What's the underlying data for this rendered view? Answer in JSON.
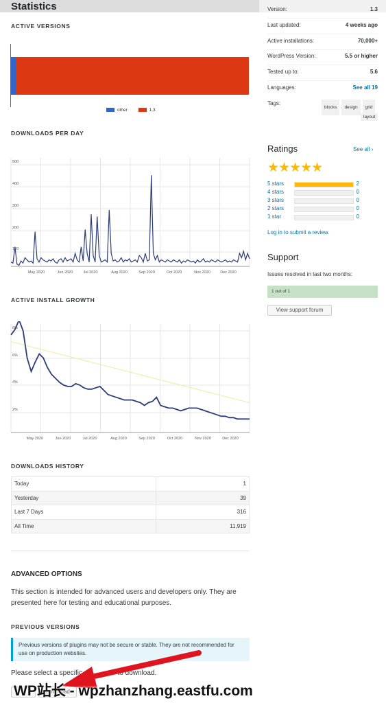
{
  "header": {
    "title": "Statistics"
  },
  "sections": {
    "active_versions": "ACTIVE VERSIONS",
    "downloads_per_day": "DOWNLOADS PER DAY",
    "active_install_growth": "ACTIVE INSTALL GROWTH",
    "downloads_history": "DOWNLOADS HISTORY",
    "advanced_options": "ADVANCED OPTIONS",
    "previous_versions": "PREVIOUS VERSIONS"
  },
  "colors": {
    "other": "#3366cc",
    "v13": "#dc3912",
    "line": "#2b3b78",
    "trend": "#f1e9a0",
    "star": "#ffb900",
    "support_box": "#c6e1c6"
  },
  "chart_data": [
    {
      "type": "bar",
      "title": "ACTIVE VERSIONS",
      "series": [
        {
          "name": "other",
          "values": [
            2
          ]
        },
        {
          "name": "1.3",
          "values": [
            98
          ]
        }
      ],
      "legend": "bottom"
    },
    {
      "type": "line",
      "title": "DOWNLOADS PER DAY",
      "ylim": [
        0,
        500
      ],
      "yticks": [
        "500",
        "400",
        "300",
        "200",
        "100"
      ],
      "xticks": [
        "May 2020",
        "Jun 2020",
        "Jul 2020",
        "Aug 2020",
        "Sep 2020",
        "Oct 2020",
        "Nov 2020",
        "Dec 2020"
      ],
      "x": [
        0,
        1,
        2,
        3,
        4,
        5,
        6,
        7,
        8,
        9,
        10,
        11,
        12,
        13,
        14,
        15,
        16,
        17,
        18,
        19,
        20,
        21,
        22,
        23,
        24,
        25,
        26,
        27,
        28,
        29,
        30,
        31,
        32,
        33,
        34,
        35,
        36,
        37,
        38,
        39,
        40,
        41,
        42,
        43,
        44,
        45,
        46,
        47,
        48,
        49,
        50,
        51,
        52,
        53,
        54,
        55,
        56,
        57,
        58,
        59,
        60,
        61,
        62,
        63,
        64,
        65,
        66,
        67,
        68,
        69,
        70,
        71,
        72,
        73,
        74,
        75,
        76,
        77,
        78,
        79,
        80,
        81,
        82,
        83,
        84,
        85,
        86,
        87,
        88,
        89,
        90,
        91,
        92,
        93,
        94,
        95,
        96,
        97,
        98,
        99,
        100,
        101,
        102,
        103,
        104,
        105,
        106,
        107,
        108,
        109,
        110,
        111,
        112,
        113,
        114,
        115,
        116,
        117,
        118,
        119
      ],
      "values": [
        20,
        15,
        90,
        10,
        5,
        25,
        15,
        40,
        30,
        20,
        25,
        15,
        160,
        35,
        20,
        40,
        30,
        25,
        20,
        30,
        25,
        35,
        20,
        15,
        30,
        35,
        20,
        40,
        25,
        30,
        35,
        20,
        60,
        30,
        20,
        90,
        25,
        170,
        60,
        20,
        240,
        50,
        20,
        230,
        50,
        20,
        25,
        30,
        20,
        260,
        60,
        25,
        30,
        20,
        25,
        40,
        20,
        30,
        25,
        35,
        20,
        25,
        30,
        20,
        50,
        40,
        20,
        60,
        25,
        30,
        420,
        60,
        30,
        50,
        20,
        30,
        25,
        20,
        30,
        25,
        20,
        30,
        25,
        20,
        30,
        15,
        25,
        20,
        30,
        25,
        20,
        25,
        15,
        30,
        20,
        25,
        35,
        20,
        25,
        20,
        30,
        25,
        20,
        30,
        25,
        20,
        25,
        30,
        20,
        25,
        20,
        30,
        25,
        20,
        60,
        40,
        70,
        30,
        60,
        35
      ]
    },
    {
      "type": "line",
      "title": "ACTIVE INSTALL GROWTH",
      "yticks": [
        "8%",
        "6%",
        "4%",
        "2%"
      ],
      "ylim": [
        0,
        8
      ],
      "xticks": [
        "May 2020",
        "Jun 2020",
        "Jul 2020",
        "Aug 2020",
        "Sep 2020",
        "Oct 2020",
        "Nov 2020",
        "Dec 2020"
      ],
      "x": [
        0,
        1,
        2,
        3,
        4,
        5,
        6,
        7,
        8,
        9,
        10,
        11,
        12,
        13,
        14,
        15,
        16,
        17,
        18,
        19,
        20,
        21,
        22,
        23,
        24,
        25,
        26,
        27,
        28,
        29,
        30,
        31,
        32,
        33,
        34,
        35,
        36,
        37,
        38,
        39,
        40,
        41,
        42,
        43,
        44,
        45,
        46,
        47,
        48,
        49,
        50,
        51,
        52,
        53,
        54,
        55,
        56,
        57,
        58,
        59
      ],
      "values": [
        7.2,
        7.6,
        8.3,
        7.5,
        5.5,
        4.5,
        5.2,
        5.8,
        5.5,
        4.8,
        4.3,
        4.0,
        3.7,
        3.5,
        3.4,
        3.4,
        3.6,
        3.5,
        3.3,
        3.2,
        3.2,
        3.3,
        3.4,
        3.1,
        2.8,
        2.7,
        2.6,
        2.5,
        2.4,
        2.4,
        2.4,
        2.3,
        2.2,
        2.0,
        2.2,
        2.3,
        2.6,
        2.0,
        1.9,
        1.8,
        1.8,
        1.7,
        1.6,
        1.7,
        1.8,
        1.8,
        1.8,
        1.7,
        1.6,
        1.5,
        1.4,
        1.3,
        1.2,
        1.2,
        1.1,
        1.1,
        1.0,
        1.0,
        1.0,
        1.0
      ],
      "trend": [
        6.7,
        2.2
      ]
    }
  ],
  "history": {
    "rows": [
      {
        "label": "Today",
        "value": "1"
      },
      {
        "label": "Yesterday",
        "value": "39"
      },
      {
        "label": "Last 7 Days",
        "value": "316"
      },
      {
        "label": "All Time",
        "value": "11,919"
      }
    ]
  },
  "advanced": {
    "text": "This section is intended for advanced users and developers only. They are presented here for testing and educational purposes.",
    "notice": "Previous versions of plugins may not be secure or stable. They are not recommended for use on production websites.",
    "select_prefix": "Please select a specific",
    "select_suffix": "to download.",
    "download_label": "Download"
  },
  "watermark": "WP站长 - wpzhanzhang.eastfu.com",
  "meta": {
    "rows": [
      {
        "label": "Version:",
        "value": "1.3"
      },
      {
        "label": "Last updated:",
        "value": "4 weeks ago"
      },
      {
        "label": "Active installations:",
        "value": "70,000+"
      },
      {
        "label": "WordPress Version:",
        "value": "5.5 or higher"
      },
      {
        "label": "Tested up to:",
        "value": "5.6"
      },
      {
        "label": "Languages:",
        "value": "See all 19"
      }
    ],
    "tags_label": "Tags:",
    "tags": [
      "blocks",
      "design",
      "grid",
      "layout"
    ]
  },
  "ratings": {
    "title": "Ratings",
    "see_all": "See all",
    "stars": "★★★★★",
    "rows": [
      {
        "label": "5 stars",
        "count": "2",
        "fill": 1
      },
      {
        "label": "4 stars",
        "count": "0",
        "fill": 0
      },
      {
        "label": "3 stars",
        "count": "0",
        "fill": 0
      },
      {
        "label": "2 stars",
        "count": "0",
        "fill": 0
      },
      {
        "label": "1 star",
        "count": "0",
        "fill": 0
      }
    ],
    "login": "Log in to submit a review."
  },
  "support": {
    "title": "Support",
    "issues": "Issues resolved in last two months:",
    "resolved": "1 out of 1",
    "view_button": "View support forum"
  }
}
